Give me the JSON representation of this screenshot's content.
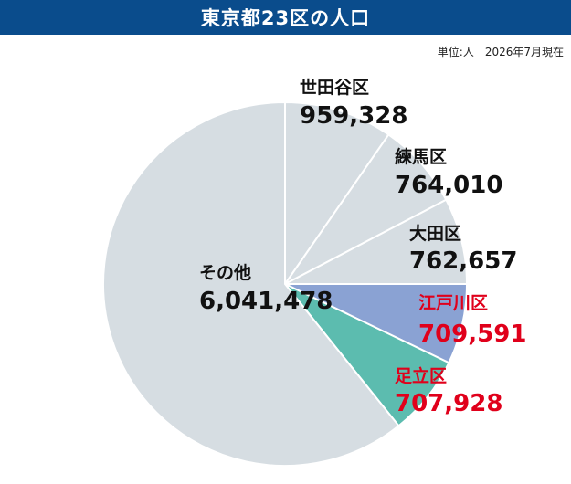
{
  "header": {
    "title": "東京都23区の人口",
    "bg_color": "#0a4c8c"
  },
  "unit_note": "単位:人　2026年7月現在",
  "chart_data": {
    "type": "pie",
    "title": "東京都23区の人口",
    "unit": "単位:人",
    "as_of": "2026年7月現在",
    "start_angle_deg": 90,
    "direction": "clockwise",
    "slices": [
      {
        "key": "setagaya",
        "label": "世田谷区",
        "value": 959328,
        "display": "959,328",
        "color": "#d6dde2",
        "text_color": "#111111"
      },
      {
        "key": "nerima",
        "label": "練馬区",
        "value": 764010,
        "display": "764,010",
        "color": "#d6dde2",
        "text_color": "#111111"
      },
      {
        "key": "ota",
        "label": "大田区",
        "value": 762657,
        "display": "762,657",
        "color": "#d6dde2",
        "text_color": "#111111"
      },
      {
        "key": "edogawa",
        "label": "江戸川区",
        "value": 709591,
        "display": "709,591",
        "color": "#8aa2d3",
        "text_color": "#e0001b"
      },
      {
        "key": "adachi",
        "label": "足立区",
        "value": 707928,
        "display": "707,928",
        "color": "#5cbcaf",
        "text_color": "#e0001b"
      },
      {
        "key": "other",
        "label": "その他",
        "value": 6041478,
        "display": "6,041,478",
        "color": "#d6dde2",
        "text_color": "#111111"
      }
    ]
  }
}
